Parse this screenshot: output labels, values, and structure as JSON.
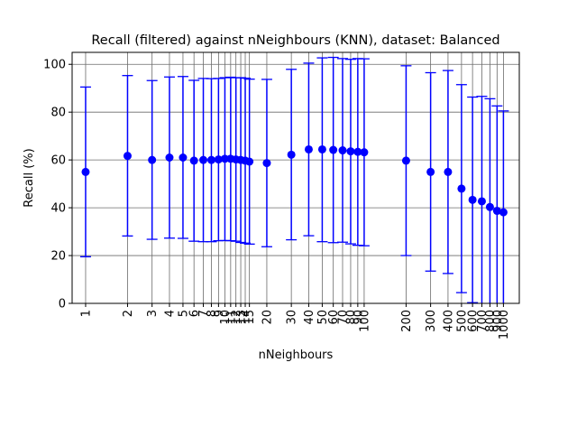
{
  "chart_data": {
    "type": "scatter",
    "title": "Recall (filtered) against nNeighbours (KNN), dataset: Balanced",
    "xlabel": "nNeighbours",
    "ylabel": "Recall (%)",
    "x_scale": "log",
    "xlim": [
      0.8,
      1300
    ],
    "ylim": [
      0,
      105
    ],
    "y_ticks": [
      0,
      20,
      40,
      60,
      80,
      100
    ],
    "x_ticks": [
      1,
      2,
      3,
      4,
      5,
      6,
      7,
      8,
      9,
      10,
      11,
      12,
      13,
      14,
      15,
      20,
      30,
      40,
      50,
      60,
      70,
      80,
      90,
      100,
      200,
      300,
      400,
      500,
      600,
      700,
      800,
      900,
      1000
    ],
    "x_tick_labels": [
      "1",
      "2",
      "3",
      "4",
      "5",
      "6",
      "7",
      "8",
      "9",
      "10",
      "11",
      "12",
      "13",
      "14",
      "15",
      "20",
      "30",
      "40",
      "50",
      "60",
      "70",
      "80",
      "90",
      "100",
      "200",
      "300",
      "400",
      "500",
      "600",
      "700",
      "800",
      "900",
      "1000"
    ],
    "grid": true,
    "color": "#0000ff",
    "series": [
      {
        "x": [
          1,
          2,
          3,
          4,
          5,
          6,
          7,
          8,
          9,
          10,
          11,
          12,
          13,
          14,
          15,
          20,
          30,
          40,
          50,
          60,
          70,
          80,
          90,
          100,
          200,
          300,
          400,
          500,
          600,
          700,
          800,
          900,
          1000
        ],
        "y": [
          55,
          61.7,
          60,
          61,
          61,
          59.7,
          60,
          60,
          60.2,
          60.5,
          60.5,
          60.2,
          60,
          59.7,
          59.3,
          58.7,
          62.2,
          64.4,
          64.4,
          64.2,
          64,
          63.6,
          63.4,
          63.2,
          59.7,
          55,
          55,
          48,
          43.3,
          42.7,
          40.3,
          38.7,
          38.1
        ],
        "y_low": [
          19.5,
          28.2,
          26.8,
          27.3,
          27.2,
          26,
          25.8,
          25.8,
          26.2,
          26.3,
          26.2,
          26,
          25.5,
          25.2,
          24.8,
          23.7,
          26.6,
          28.3,
          25.8,
          25.4,
          25.6,
          24.9,
          24.3,
          24.1,
          20,
          13.5,
          12.5,
          4.5,
          0.3,
          -1,
          -3,
          -5,
          -5
        ],
        "y_high": [
          90.5,
          95.3,
          93.2,
          94.7,
          94.9,
          93.3,
          94.1,
          94,
          94.1,
          94.4,
          94.6,
          94.4,
          94.4,
          94.2,
          93.8,
          93.7,
          97.9,
          100.5,
          102.7,
          102.9,
          102.4,
          102.1,
          102.4,
          102.3,
          99.4,
          96.5,
          97.4,
          91.5,
          86.3,
          86.6,
          85.6,
          82.6,
          80.5
        ]
      }
    ]
  }
}
